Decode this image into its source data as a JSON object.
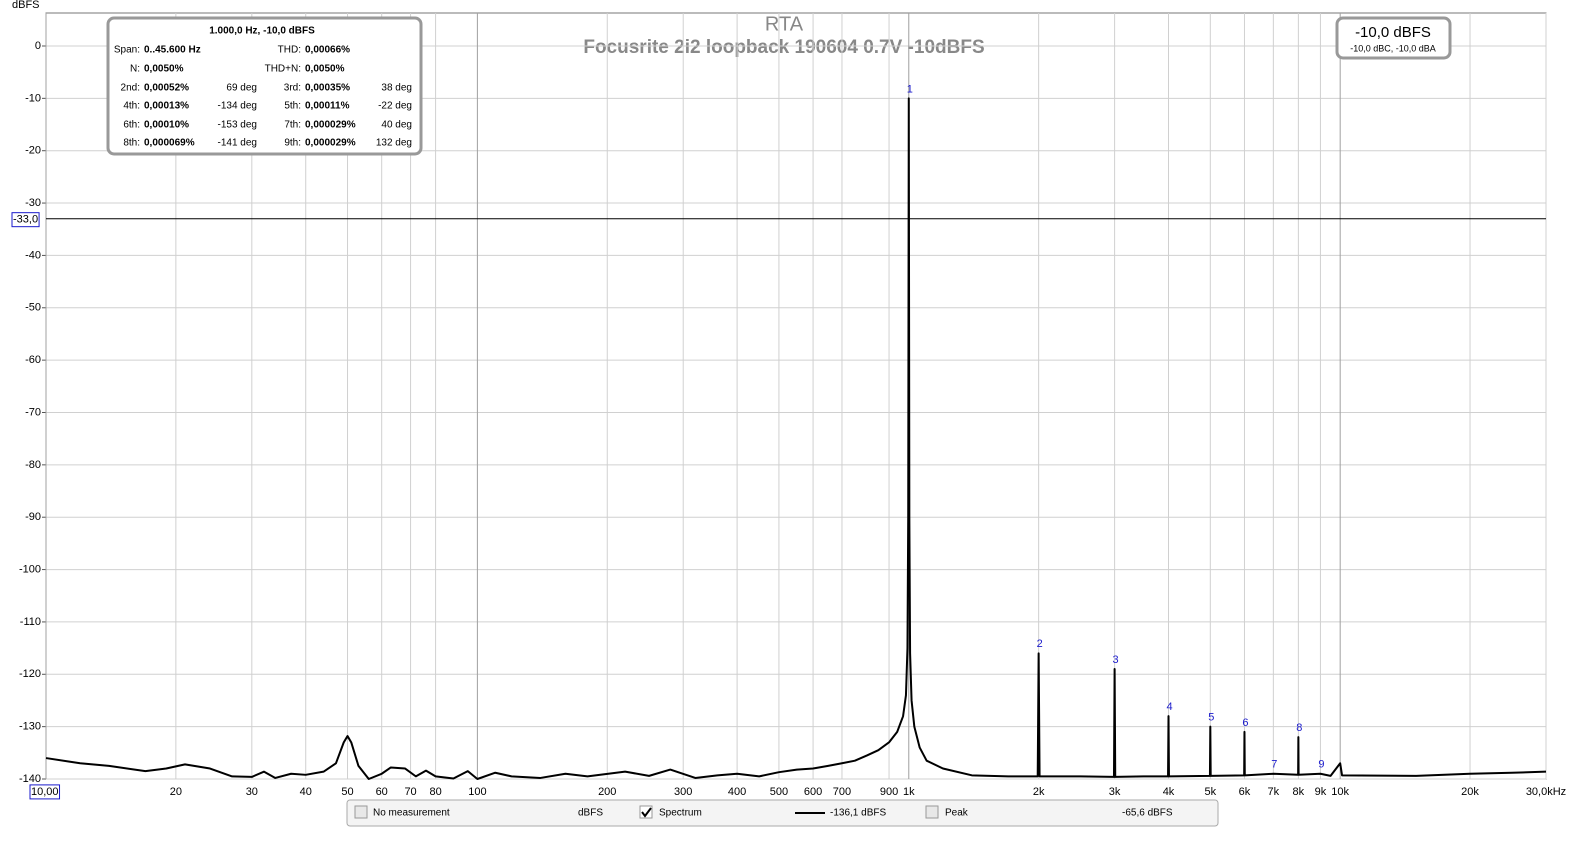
{
  "chart_data": {
    "type": "line",
    "title": "RTA",
    "subtitle": "Focusrite 2i2 loopback 190604 0.7V -10dBFS",
    "y_label": "dBFS",
    "log_x": true,
    "grid": true,
    "xlim": [
      10,
      30000
    ],
    "ylim": [
      -140,
      6.3
    ],
    "xticks": [
      {
        "value": 10,
        "label": "10,00"
      },
      20,
      30,
      40,
      50,
      60,
      70,
      80,
      100,
      200,
      300,
      400,
      500,
      600,
      700,
      900,
      {
        "value": 1000,
        "label": "1k"
      },
      {
        "value": 2000,
        "label": "2k"
      },
      {
        "value": 3000,
        "label": "3k"
      },
      {
        "value": 4000,
        "label": "4k"
      },
      {
        "value": 5000,
        "label": "5k"
      },
      {
        "value": 6000,
        "label": "6k"
      },
      {
        "value": 7000,
        "label": "7k"
      },
      {
        "value": 8000,
        "label": "8k"
      },
      {
        "value": 9000,
        "label": "9k"
      },
      {
        "value": 10000,
        "label": "10k"
      },
      {
        "value": 20000,
        "label": "20k"
      },
      {
        "value": 30000,
        "label": "30,0kHz"
      }
    ],
    "yticks": [
      -140,
      -130,
      -120,
      -110,
      -100,
      -90,
      -80,
      -70,
      -60,
      -50,
      -40,
      -30,
      -20,
      -10,
      0
    ],
    "cursor": {
      "value": -33,
      "label": "-33,0"
    },
    "x": [
      10,
      12,
      14,
      17,
      19,
      21,
      24,
      27,
      30,
      32,
      34,
      37,
      40,
      44,
      47,
      49,
      50,
      51,
      53,
      56,
      60,
      63,
      68,
      72,
      76,
      80,
      88,
      95,
      100,
      110,
      120,
      140,
      160,
      180,
      220,
      250,
      280,
      320,
      360,
      400,
      450,
      500,
      550,
      600,
      650,
      700,
      750,
      800,
      850,
      900,
      940,
      970,
      985,
      993,
      997,
      1000,
      1003,
      1007,
      1015,
      1030,
      1060,
      1100,
      1200,
      1400,
      1700,
      1990,
      2000,
      2010,
      2500,
      2990,
      3000,
      3010,
      3500,
      3990,
      4000,
      4010,
      4990,
      5000,
      5010,
      5990,
      6000,
      6010,
      7000,
      7990,
      8000,
      8010,
      9000,
      9500,
      10000,
      10100,
      15000,
      20000,
      25000,
      30000
    ],
    "series": [
      {
        "name": "Spectrum",
        "color": "#000000",
        "values": [
          -136,
          -137,
          -137.5,
          -138.5,
          -138,
          -137.2,
          -138,
          -139.5,
          -139.6,
          -138.6,
          -139.8,
          -139,
          -139.2,
          -138.6,
          -137,
          -133,
          -131.8,
          -133,
          -137.5,
          -140,
          -139,
          -137.8,
          -138,
          -139.5,
          -138.4,
          -139.5,
          -139.9,
          -138.5,
          -140,
          -138.8,
          -139.5,
          -139.8,
          -139,
          -139.5,
          -138.6,
          -139.4,
          -138.2,
          -139.8,
          -139.3,
          -139,
          -139.5,
          -138.7,
          -138.2,
          -138,
          -137.5,
          -137,
          -136.5,
          -135.5,
          -134.5,
          -133,
          -131,
          -128,
          -124,
          -115,
          -90,
          -10,
          -90,
          -116,
          -125,
          -130,
          -134,
          -136.5,
          -138,
          -139.3,
          -139.5,
          -139.5,
          -116,
          -139.5,
          -139.5,
          -139.6,
          -119,
          -139.6,
          -139.5,
          -139.5,
          -128,
          -139.5,
          -139.4,
          -130,
          -139.4,
          -139.3,
          -131,
          -139.3,
          -139,
          -139.2,
          -132,
          -139.2,
          -139,
          -139.4,
          -137,
          -139.3,
          -139.4,
          -139,
          -138.8,
          -138.6
        ]
      }
    ],
    "harmonics": [
      {
        "label": "1",
        "x": 1000,
        "y": -10
      },
      {
        "label": "2",
        "x": 2000,
        "y": -116
      },
      {
        "label": "3",
        "x": 3000,
        "y": -119
      },
      {
        "label": "4",
        "x": 4000,
        "y": -128
      },
      {
        "label": "5",
        "x": 5000,
        "y": -130
      },
      {
        "label": "6",
        "x": 6000,
        "y": -131
      },
      {
        "label": "7",
        "x": 7000,
        "y": -139
      },
      {
        "label": "8",
        "x": 8000,
        "y": -132
      },
      {
        "label": "9",
        "x": 9000,
        "y": -139
      }
    ],
    "info": {
      "header": "1.000,0 Hz, -10,0 dBFS",
      "rows": [
        [
          "Span:",
          "0..45.600 Hz",
          "THD:",
          "0,00066%"
        ],
        [
          "N:",
          "0,0050%",
          "THD+N:",
          "0,0050%"
        ],
        [
          "2nd:",
          "0,00052%",
          "69 deg",
          "3rd:",
          "0,00035%",
          "38 deg"
        ],
        [
          "4th:",
          "0,00013%",
          "-134 deg",
          "5th:",
          "0,00011%",
          "-22 deg"
        ],
        [
          "6th:",
          "0,00010%",
          "-153 deg",
          "7th:",
          "0,000029%",
          "40 deg"
        ],
        [
          "8th:",
          "0,000069%",
          "-141 deg",
          "9th:",
          "0,000029%",
          "132 deg"
        ]
      ]
    },
    "level": {
      "value": "-10,0 dBFS",
      "detail": "-10,0 dBC, -10,0 dBA"
    },
    "bottom_bar": {
      "no_measurement": "No measurement",
      "unit": "dBFS",
      "spectrum_readout": "-136,1 dBFS",
      "peak": "Peak",
      "peak_readout": "-65,6 dBFS"
    }
  }
}
